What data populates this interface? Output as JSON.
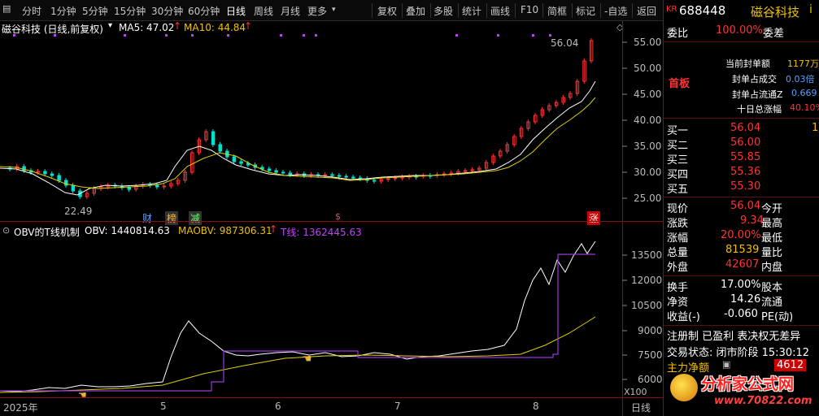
{
  "toolbar": {
    "periods": [
      "分时",
      "1分钟",
      "5分钟",
      "15分钟",
      "30分钟",
      "60分钟",
      "日线",
      "周线",
      "月线",
      "更多"
    ],
    "active_period": "日线",
    "tools": [
      "复权",
      "叠加",
      "多股",
      "统计",
      "画线",
      "F10",
      "简框",
      "标记",
      "-自选",
      "返回"
    ]
  },
  "main_chart": {
    "stock_title": "磁谷科技 (日线,前复权)",
    "ma5_label": "MA5: 47.02",
    "ma10_label": "MA10: 44.84",
    "high_label": "56.04",
    "low_label": "22.49",
    "y_ticks": [
      "55.00",
      "50.00",
      "45.00",
      "40.00",
      "35.00",
      "30.00",
      "25.00"
    ],
    "event_badges": [
      "财",
      "榜",
      "减",
      "$",
      "涨"
    ]
  },
  "indicator": {
    "name": "OBV的T线机制",
    "obv_label": "OBV: 1440814.63",
    "maobv_label": "MAOBV: 987306.31",
    "t_label": "T线: 1362445.63",
    "y_ticks": [
      "13500",
      "12000",
      "10500",
      "9000",
      "7500",
      "6000"
    ],
    "y_unit": "X100"
  },
  "x_axis": {
    "labels": [
      "2025年",
      "5",
      "6",
      "7",
      "8"
    ],
    "corner": "日线"
  },
  "right_panel": {
    "kr": "KR",
    "code": "688448",
    "name": "磁谷科技",
    "info_icon": "i",
    "weibi_label": "委比",
    "weibi_value": "100.00%",
    "weicha_label": "委差",
    "board_tag": "首板",
    "seal_lines": [
      {
        "label": "当前封单额",
        "value": "1177万"
      },
      {
        "label": "封单占成交",
        "value": "0.03倍"
      },
      {
        "label": "封单占流通Z",
        "value": "0.669"
      },
      {
        "label": "十日总涨幅",
        "value": "40.10%"
      }
    ],
    "bids": [
      {
        "label": "买一",
        "price": "56.04",
        "vol": "1"
      },
      {
        "label": "买二",
        "price": "56.00",
        "vol": ""
      },
      {
        "label": "买三",
        "price": "55.85",
        "vol": ""
      },
      {
        "label": "买四",
        "price": "55.36",
        "vol": ""
      },
      {
        "label": "买五",
        "price": "55.30",
        "vol": ""
      }
    ],
    "quote": [
      {
        "l1": "现价",
        "v1": "56.04",
        "l2": "今开"
      },
      {
        "l1": "涨跌",
        "v1": "9.34",
        "l2": "最高"
      },
      {
        "l1": "涨幅",
        "v1": "20.00%",
        "l2": "最低"
      },
      {
        "l1": "总量",
        "v1": "81539",
        "l2": "量比"
      },
      {
        "l1": "外盘",
        "v1": "42607",
        "l2": "内盘"
      }
    ],
    "stats": [
      {
        "l1": "换手",
        "v1": "17.00%",
        "l2": "股本"
      },
      {
        "l1": "净资",
        "v1": "14.26",
        "l2": "流通"
      },
      {
        "l1": "收益(-)",
        "v1": "-0.060",
        "l2": "PE(动)"
      }
    ],
    "tags_line": "注册制 已盈利 表决权无差异",
    "status_line": "交易状态: 闭市阶段 15:30:12",
    "net_flow_label": "主力净额",
    "net_flow_value": "4612"
  },
  "watermark": {
    "title": "分析家公式网",
    "url": "www.70822.com"
  }
}
